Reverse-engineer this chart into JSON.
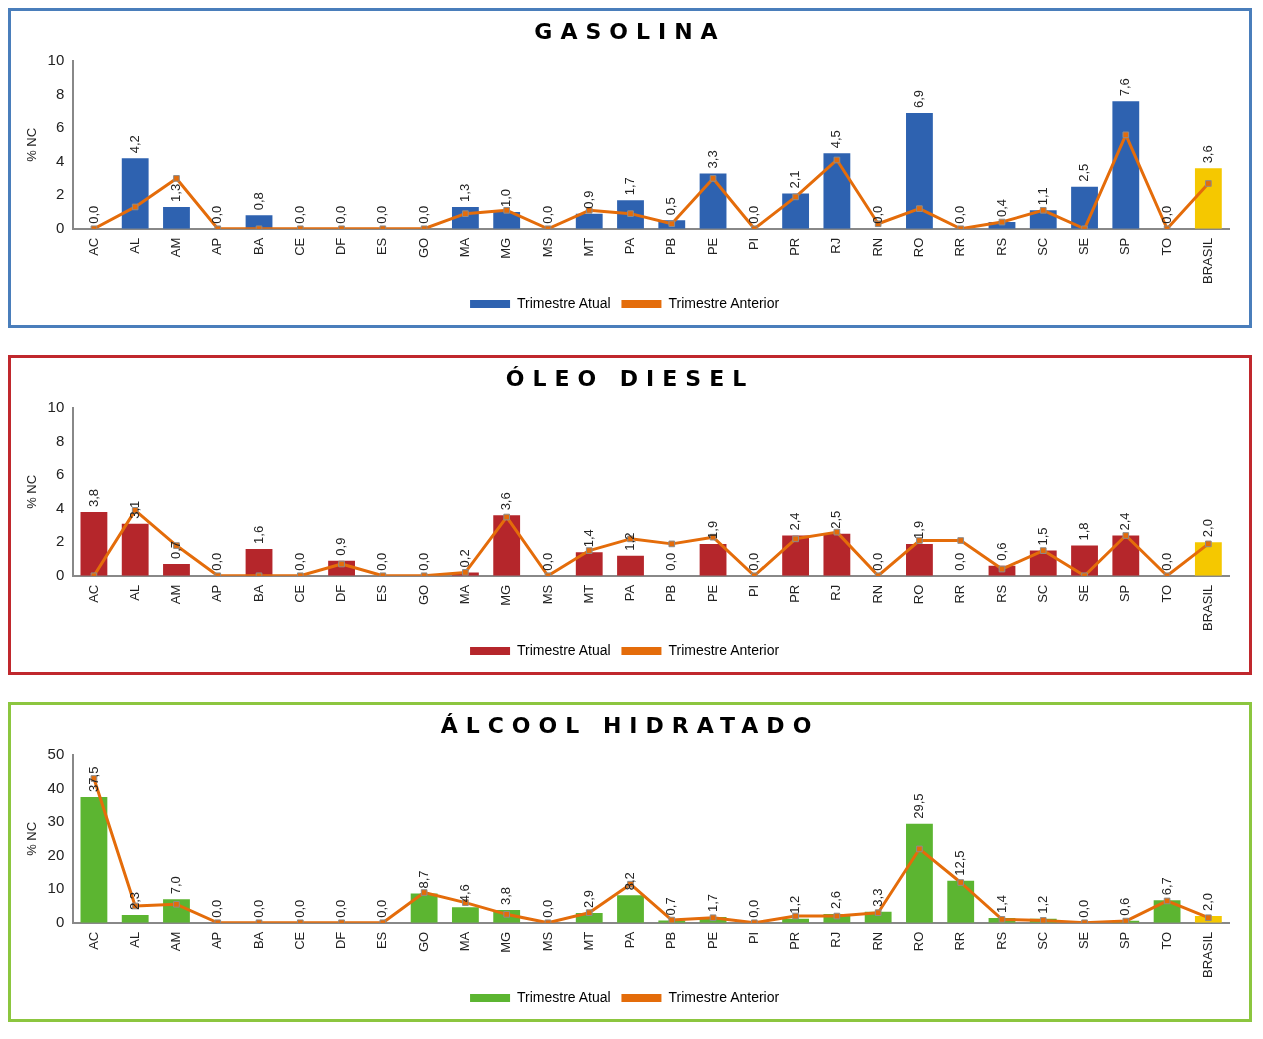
{
  "chart_data": [
    {
      "type": "bar",
      "title": "GASOLINA",
      "ylabel": "% NC",
      "ylim": [
        0,
        10
      ],
      "yticks": [
        0,
        2,
        4,
        6,
        8,
        10
      ],
      "legend": "bottom",
      "marker": "square",
      "categories": [
        "AC",
        "AL",
        "AM",
        "AP",
        "BA",
        "CE",
        "DF",
        "ES",
        "GO",
        "MA",
        "MG",
        "MS",
        "MT",
        "PA",
        "PB",
        "PE",
        "PI",
        "PR",
        "RJ",
        "RN",
        "RO",
        "RR",
        "RS",
        "SC",
        "SE",
        "SP",
        "TO",
        "BRASIL"
      ],
      "series": [
        {
          "name": "Trimestre Atual",
          "color": "#2e62b0",
          "colors": [
            "#2e62b0",
            "#2e62b0",
            "#2e62b0",
            "#2e62b0",
            "#2e62b0",
            "#2e62b0",
            "#2e62b0",
            "#2e62b0",
            "#2e62b0",
            "#2e62b0",
            "#2e62b0",
            "#2e62b0",
            "#2e62b0",
            "#2e62b0",
            "#2e62b0",
            "#2e62b0",
            "#2e62b0",
            "#2e62b0",
            "#2e62b0",
            "#2e62b0",
            "#2e62b0",
            "#2e62b0",
            "#2e62b0",
            "#2e62b0",
            "#2e62b0",
            "#2e62b0",
            "#2e62b0",
            "#f5c800"
          ],
          "values": [
            0.0,
            4.2,
            1.3,
            0.0,
            0.8,
            0.0,
            0.0,
            0.0,
            0.0,
            1.3,
            1.0,
            0.0,
            0.9,
            1.7,
            0.5,
            3.3,
            0.0,
            2.1,
            4.5,
            0.0,
            6.9,
            0.0,
            0.4,
            1.1,
            2.5,
            7.6,
            0.0,
            3.6
          ],
          "value_labels": [
            "0,0",
            "4,2",
            "1,3",
            "0,0",
            "0,8",
            "0,0",
            "0,0",
            "0,0",
            "0,0",
            "1,3",
            "1,0",
            "0,0",
            "0,9",
            "1,7",
            "0,5",
            "3,3",
            "0,0",
            "2,1",
            "4,5",
            "0,0",
            "6,9",
            "0,0",
            "0,4",
            "1,1",
            "2,5",
            "7,6",
            "0,0",
            "3,6"
          ]
        },
        {
          "name": "Trimestre Anterior",
          "type": "line",
          "color": "#e46c0a",
          "values": [
            0,
            1.3,
            3.0,
            0,
            0,
            0,
            0,
            0,
            0,
            0.9,
            1.1,
            0,
            1.1,
            0.9,
            0.3,
            3.0,
            0,
            1.9,
            4.1,
            0.3,
            1.2,
            0,
            0.4,
            1.1,
            0,
            5.6,
            0,
            2.7
          ]
        }
      ]
    },
    {
      "type": "bar",
      "title": "ÓLEO DIESEL",
      "ylabel": "% NC",
      "ylim": [
        0,
        10
      ],
      "yticks": [
        0,
        2,
        4,
        6,
        8,
        10
      ],
      "legend": "bottom",
      "marker": "square",
      "categories": [
        "AC",
        "AL",
        "AM",
        "AP",
        "BA",
        "CE",
        "DF",
        "ES",
        "GO",
        "MA",
        "MG",
        "MS",
        "MT",
        "PA",
        "PB",
        "PE",
        "PI",
        "PR",
        "RJ",
        "RN",
        "RO",
        "RR",
        "RS",
        "SC",
        "SE",
        "SP",
        "TO",
        "BRASIL"
      ],
      "series": [
        {
          "name": "Trimestre Atual",
          "color": "#b5262b",
          "colors": [
            "#b5262b",
            "#b5262b",
            "#b5262b",
            "#b5262b",
            "#b5262b",
            "#b5262b",
            "#b5262b",
            "#b5262b",
            "#b5262b",
            "#b5262b",
            "#b5262b",
            "#b5262b",
            "#b5262b",
            "#b5262b",
            "#b5262b",
            "#b5262b",
            "#b5262b",
            "#b5262b",
            "#b5262b",
            "#b5262b",
            "#b5262b",
            "#b5262b",
            "#b5262b",
            "#b5262b",
            "#b5262b",
            "#b5262b",
            "#b5262b",
            "#f5c800"
          ],
          "values": [
            3.8,
            3.1,
            0.7,
            0.0,
            1.6,
            0.0,
            0.9,
            0.0,
            0.0,
            0.2,
            3.6,
            0.0,
            1.4,
            1.2,
            0.0,
            1.9,
            0.0,
            2.4,
            2.5,
            0.0,
            1.9,
            0.0,
            0.6,
            1.5,
            1.8,
            2.4,
            0.0,
            2.0
          ],
          "value_labels": [
            "3,8",
            "3,1",
            "0,7",
            "0,0",
            "1,6",
            "0,0",
            "0,9",
            "0,0",
            "0,0",
            "0,2",
            "3,6",
            "0,0",
            "1,4",
            "1,2",
            "0,0",
            "1,9",
            "0,0",
            "2,4",
            "2,5",
            "0,0",
            "1,9",
            "0,0",
            "0,6",
            "1,5",
            "1,8",
            "2,4",
            "0,0",
            "2,0"
          ]
        },
        {
          "name": "Trimestre Anterior",
          "type": "line",
          "color": "#e46c0a",
          "values": [
            0,
            3.9,
            1.8,
            0,
            0,
            0,
            0.7,
            0,
            0,
            0.2,
            3.5,
            0,
            1.5,
            2.2,
            1.9,
            2.3,
            0,
            2.2,
            2.6,
            0,
            2.1,
            2.1,
            0.4,
            1.5,
            0,
            2.4,
            0,
            1.9
          ]
        }
      ]
    },
    {
      "type": "bar",
      "title": "ÁLCOOL HIDRATADO",
      "ylabel": "% NC",
      "ylim": [
        0,
        50
      ],
      "yticks": [
        0,
        10,
        20,
        30,
        40,
        50
      ],
      "legend": "bottom",
      "marker": "square",
      "categories": [
        "AC",
        "AL",
        "AM",
        "AP",
        "BA",
        "CE",
        "DF",
        "ES",
        "GO",
        "MA",
        "MG",
        "MS",
        "MT",
        "PA",
        "PB",
        "PE",
        "PI",
        "PR",
        "RJ",
        "RN",
        "RO",
        "RR",
        "RS",
        "SC",
        "SE",
        "SP",
        "TO",
        "BRASIL"
      ],
      "series": [
        {
          "name": "Trimestre Atual",
          "color": "#5cb531",
          "colors": [
            "#5cb531",
            "#5cb531",
            "#5cb531",
            "#5cb531",
            "#5cb531",
            "#5cb531",
            "#5cb531",
            "#5cb531",
            "#5cb531",
            "#5cb531",
            "#5cb531",
            "#5cb531",
            "#5cb531",
            "#5cb531",
            "#5cb531",
            "#5cb531",
            "#5cb531",
            "#5cb531",
            "#5cb531",
            "#5cb531",
            "#5cb531",
            "#5cb531",
            "#5cb531",
            "#5cb531",
            "#5cb531",
            "#5cb531",
            "#5cb531",
            "#f5c800"
          ],
          "values": [
            37.5,
            2.3,
            7.0,
            0.0,
            0.0,
            0.0,
            0.0,
            0.0,
            8.7,
            4.6,
            3.8,
            0.0,
            2.9,
            8.2,
            0.7,
            1.7,
            0.0,
            1.2,
            2.6,
            3.3,
            29.5,
            12.5,
            1.4,
            1.2,
            0.0,
            0.6,
            6.7,
            2.0
          ],
          "value_labels": [
            "37,5",
            "2,3",
            "7,0",
            "0,0",
            "0,0",
            "0,0",
            "0,0",
            "0,0",
            "8,7",
            "4,6",
            "3,8",
            "0,0",
            "2,9",
            "8,2",
            "0,7",
            "1,7",
            "0,0",
            "1,2",
            "2,6",
            "3,3",
            "29,5",
            "12,5",
            "1,4",
            "1,2",
            "0,0",
            "0,6",
            "6,7",
            "2,0"
          ]
        },
        {
          "name": "Trimestre Anterior",
          "type": "line",
          "color": "#e46c0a",
          "values": [
            43,
            5,
            5.5,
            0,
            0,
            0,
            0,
            0,
            9,
            6,
            2.5,
            0,
            3,
            11.5,
            0.8,
            1.5,
            0,
            2,
            2,
            3,
            22,
            12,
            1,
            0.7,
            0,
            0.5,
            6.5,
            1.5
          ]
        }
      ]
    }
  ]
}
